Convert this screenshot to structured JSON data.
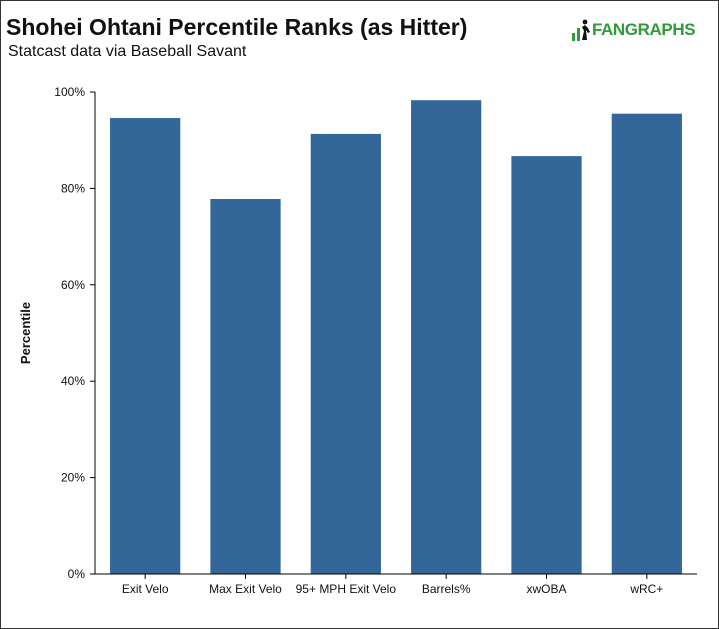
{
  "header": {
    "title": "Shohei Ohtani Percentile Ranks (as Hitter)",
    "subtitle": "Statcast data via Baseball Savant"
  },
  "logo": {
    "text": "FANGRAPHS",
    "icon": "fangraphs-logo-icon",
    "color": "#2f9b3a"
  },
  "chart_data": {
    "type": "bar",
    "title": "Shohei Ohtani Percentile Ranks (as Hitter)",
    "subtitle": "Statcast data via Baseball Savant",
    "ylabel": "Percentile",
    "xlabel": "",
    "categories": [
      "Exit Velo",
      "Max Exit Velo",
      "95+ MPH Exit Velo",
      "Barrels%",
      "xwOBA",
      "wRC+"
    ],
    "values": [
      94.6,
      77.8,
      91.3,
      98.3,
      86.7,
      95.5
    ],
    "ylim": [
      0,
      100
    ],
    "yticks": [
      0,
      20,
      40,
      60,
      80,
      100
    ],
    "ytick_labels": [
      "0%",
      "20%",
      "40%",
      "60%",
      "80%",
      "100%"
    ],
    "grid": false,
    "legend": "none",
    "bar_color": "#336699"
  }
}
